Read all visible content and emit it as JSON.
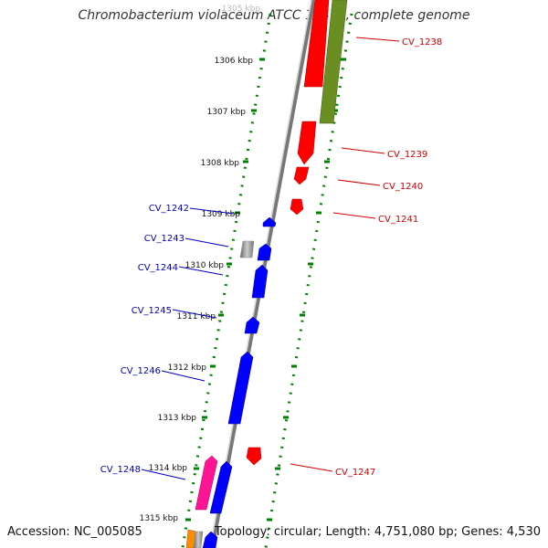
{
  "title": "Chromobacterium violaceum ATCC 12472, complete genome",
  "footer": {
    "accession": "Accession: NC_005085",
    "topology": "Topology: circular; Length: 4,751,080 bp; Genes: 4,530"
  },
  "colors": {
    "forward": "#ff0000",
    "reverse": "#0000ff",
    "olive": "#6b8e23",
    "pink": "#ff1493",
    "gray": "#b0b0b0",
    "orange": "#ff8c00",
    "backbone": "#888888",
    "tick": "#008000",
    "fwd_label": "#cc0000",
    "rev_label": "#0000bb"
  },
  "ruler": [
    {
      "label": "1305 kbp",
      "faded": true
    },
    {
      "label": "1306 kbp"
    },
    {
      "label": "1307 kbp"
    },
    {
      "label": "1308 kbp"
    },
    {
      "label": "1309 kbp"
    },
    {
      "label": "1310 kbp"
    },
    {
      "label": "1311 kbp"
    },
    {
      "label": "1312 kbp"
    },
    {
      "label": "1313 kbp"
    },
    {
      "label": "1314 kbp"
    },
    {
      "label": "1315 kbp"
    }
  ],
  "forward_genes": [
    "CV_1238",
    "CV_1239",
    "CV_1240",
    "CV_1241",
    "CV_1247"
  ],
  "reverse_genes": [
    "CV_1242",
    "CV_1243",
    "CV_1244",
    "CV_1245",
    "CV_1246",
    "CV_1248"
  ]
}
